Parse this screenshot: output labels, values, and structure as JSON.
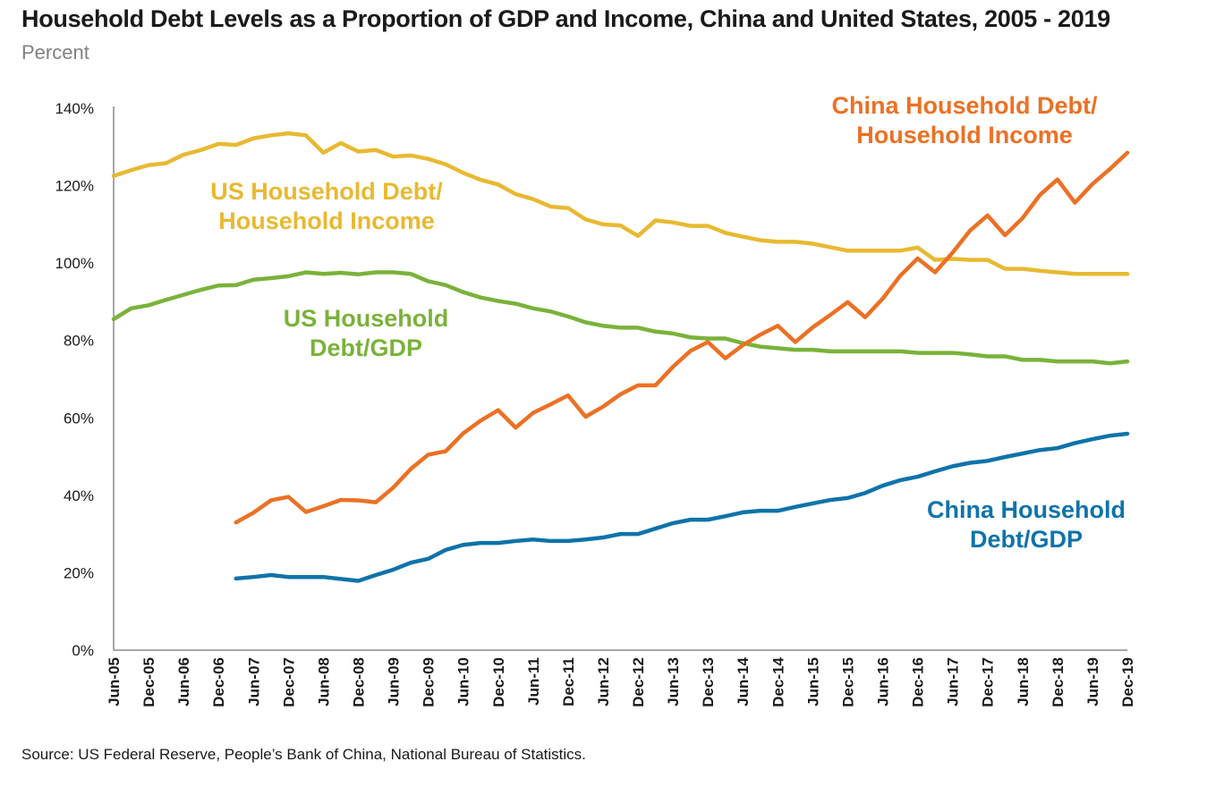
{
  "title": "Household Debt Levels as a Proportion of GDP and Income, China and United States, 2005 - 2019",
  "subtitle": "Percent",
  "source": "Source: US Federal Reserve, People’s Bank of China, National Bureau of Statistics.",
  "chart_data": {
    "type": "line",
    "ylim": [
      0,
      140
    ],
    "ytick_values": [
      0,
      20,
      40,
      60,
      80,
      100,
      120,
      140
    ],
    "ytick_labels": [
      "0%",
      "20%",
      "40%",
      "60%",
      "80%",
      "100%",
      "120%",
      "140%"
    ],
    "xtick_labels": [
      "Jun-05",
      "Dec-05",
      "Jun-06",
      "Dec-06",
      "Jun-07",
      "Dec-07",
      "Jun-08",
      "Dec-08",
      "Jun-09",
      "Dec-09",
      "Jun-10",
      "Dec-10",
      "Jun-11",
      "Dec-11",
      "Jun-12",
      "Dec-12",
      "Jun-13",
      "Dec-13",
      "Jun-14",
      "Dec-14",
      "Jun-15",
      "Dec-15",
      "Jun-16",
      "Dec-16",
      "Jun-17",
      "Dec-17",
      "Jun-18",
      "Dec-18",
      "Jun-19",
      "Dec-19"
    ],
    "x": [
      "Jun-05",
      "Sep-05",
      "Dec-05",
      "Mar-06",
      "Jun-06",
      "Sep-06",
      "Dec-06",
      "Mar-07",
      "Jun-07",
      "Sep-07",
      "Dec-07",
      "Mar-08",
      "Jun-08",
      "Sep-08",
      "Dec-08",
      "Mar-09",
      "Jun-09",
      "Sep-09",
      "Dec-09",
      "Mar-10",
      "Jun-10",
      "Sep-10",
      "Dec-10",
      "Mar-11",
      "Jun-11",
      "Sep-11",
      "Dec-11",
      "Mar-12",
      "Jun-12",
      "Sep-12",
      "Dec-12",
      "Mar-13",
      "Jun-13",
      "Sep-13",
      "Dec-13",
      "Mar-14",
      "Jun-14",
      "Sep-14",
      "Dec-14",
      "Mar-15",
      "Jun-15",
      "Sep-15",
      "Dec-15",
      "Mar-16",
      "Jun-16",
      "Sep-16",
      "Dec-16",
      "Mar-17",
      "Jun-17",
      "Sep-17",
      "Dec-17",
      "Mar-18",
      "Jun-18",
      "Sep-18",
      "Dec-18",
      "Mar-19",
      "Jun-19",
      "Sep-19",
      "Dec-19"
    ],
    "series": [
      {
        "name": "US Household Debt/ Household Income",
        "color": "#E8B931",
        "label_lines": [
          "US Household Debt/",
          "Household Income"
        ],
        "values": [
          122.5,
          124,
          125.3,
          125.8,
          128,
          129.2,
          130.8,
          130.5,
          132.2,
          133,
          133.5,
          133,
          128.5,
          131,
          128.8,
          129.2,
          127.5,
          127.8,
          126.9,
          125.5,
          123.3,
          121.5,
          120.3,
          117.8,
          116.5,
          114.6,
          114.2,
          111.3,
          110,
          109.7,
          107,
          111,
          110.5,
          109.6,
          109.6,
          107.8,
          106.8,
          105.9,
          105.5,
          105.5,
          105,
          104.1,
          103.2,
          103.2,
          103.2,
          103.2,
          104,
          100.8,
          101.1,
          100.8,
          100.8,
          98.5,
          98.5,
          98,
          97.6,
          97.2,
          97.2,
          97.2,
          97.2
        ]
      },
      {
        "name": "US Household Debt/GDP",
        "color": "#7AB23A",
        "label_lines": [
          "US Household",
          "Debt/GDP"
        ],
        "values": [
          85.5,
          88.3,
          89.1,
          90.5,
          91.8,
          93.1,
          94.2,
          94.3,
          95.7,
          96.1,
          96.6,
          97.6,
          97.2,
          97.5,
          97.1,
          97.6,
          97.6,
          97.2,
          95.3,
          94.3,
          92.5,
          91.1,
          90.2,
          89.5,
          88.3,
          87.5,
          86.2,
          84.7,
          83.8,
          83.3,
          83.3,
          82.3,
          81.8,
          80.8,
          80.5,
          80.5,
          79.3,
          78.4,
          78,
          77.6,
          77.6,
          77.2,
          77.2,
          77.2,
          77.2,
          77.2,
          76.8,
          76.8,
          76.8,
          76.4,
          75.9,
          75.9,
          75,
          75,
          74.6,
          74.6,
          74.6,
          74.1,
          74.6
        ]
      },
      {
        "name": "China Household Debt/ Household Income",
        "color": "#EB7125",
        "label_lines": [
          "China Household Debt/",
          "Household Income"
        ],
        "values": [
          null,
          null,
          null,
          null,
          null,
          null,
          null,
          33,
          35.5,
          38.7,
          39.6,
          35.7,
          37.2,
          38.8,
          38.7,
          38.2,
          42,
          46.8,
          50.5,
          51.4,
          56,
          59.3,
          62,
          57.5,
          61.3,
          63.5,
          65.8,
          60.3,
          62.9,
          66.1,
          68.4,
          68.4,
          73.2,
          77.3,
          79.6,
          75.4,
          78.8,
          81.5,
          83.8,
          79.6,
          83.4,
          86.6,
          89.9,
          86,
          90.8,
          96.7,
          101.2,
          97.6,
          102.7,
          108.4,
          112.3,
          107.2,
          111.6,
          117.6,
          121.6,
          115.6,
          120.4,
          124.3,
          128.5
        ]
      },
      {
        "name": "China Household Debt/GDP",
        "color": "#0F73A9",
        "label_lines": [
          "China Household",
          "Debt/GDP"
        ],
        "values": [
          null,
          null,
          null,
          null,
          null,
          null,
          null,
          18.5,
          18.9,
          19.4,
          18.9,
          18.9,
          18.9,
          18.4,
          17.9,
          19.4,
          20.8,
          22.6,
          23.6,
          25.9,
          27.2,
          27.7,
          27.7,
          28.2,
          28.6,
          28.2,
          28.2,
          28.6,
          29.1,
          30,
          30,
          31.4,
          32.8,
          33.7,
          33.7,
          34.6,
          35.6,
          36,
          36,
          37,
          37.9,
          38.8,
          39.3,
          40.6,
          42.5,
          43.9,
          44.8,
          46.2,
          47.5,
          48.4,
          48.9,
          49.9,
          50.8,
          51.7,
          52.2,
          53.5,
          54.5,
          55.4,
          55.9
        ]
      }
    ]
  }
}
